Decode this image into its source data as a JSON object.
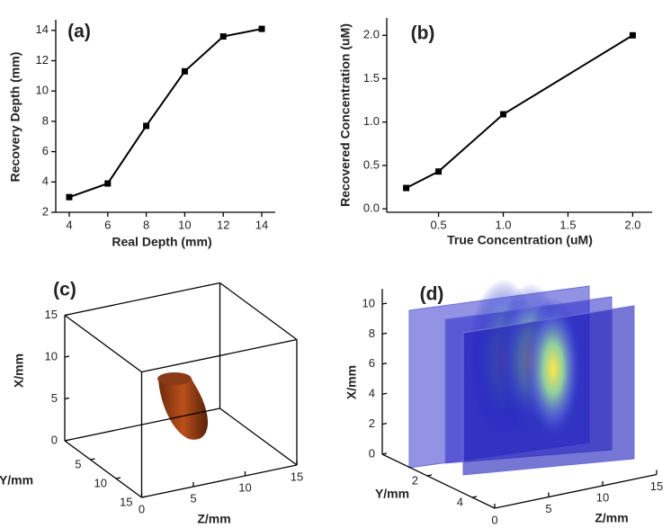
{
  "chart_data": [
    {
      "type": "line",
      "label": "(a)",
      "x_label": "Real Depth (mm)",
      "y_label": "Recovery Depth (mm)",
      "x": [
        4,
        6,
        8,
        10,
        12,
        14
      ],
      "values": [
        3.0,
        3.9,
        7.7,
        11.3,
        13.6,
        14.1
      ],
      "color": "#000000",
      "xlim": [
        3.3,
        14.7
      ],
      "ylim": [
        2,
        14.7
      ],
      "xticks": [
        4,
        6,
        8,
        10,
        12,
        14
      ],
      "yticks": [
        2,
        4,
        6,
        8,
        10,
        12,
        14
      ]
    },
    {
      "type": "line",
      "label": "(b)",
      "x_label": "True Concentration (uM)",
      "y_label": "Recovered Concentration (uM)",
      "x": [
        0.25,
        0.5,
        1,
        2
      ],
      "values": [
        0.24,
        0.43,
        1.09,
        2.0
      ],
      "color": "#000000",
      "xlim": [
        0.1,
        2.15
      ],
      "ylim": [
        -0.04,
        2.2
      ],
      "xticks": [
        {
          "value": 0.5,
          "label": "0.5"
        },
        {
          "value": 1,
          "label": "1.0"
        },
        {
          "value": 1.5,
          "label": "1.5"
        },
        {
          "value": 2,
          "label": "2.0"
        }
      ],
      "yticks": [
        {
          "value": 0,
          "label": "0.0"
        },
        {
          "value": 0.5,
          "label": "0.5"
        },
        {
          "value": 1,
          "label": "1.0"
        },
        {
          "value": 1.5,
          "label": "1.5"
        },
        {
          "value": 2,
          "label": "2.0"
        }
      ]
    },
    {
      "type": "volume3d",
      "label": "(c)",
      "x_label": "Z/mm",
      "y_label": "Y/mm",
      "z_label": "X/mm",
      "xlim": [
        0,
        15
      ],
      "ylim": [
        0,
        15
      ],
      "zlim": [
        0,
        15
      ],
      "xticks": [
        0,
        5,
        10,
        15
      ],
      "yticks": [
        5,
        10,
        15
      ],
      "zticks": [
        0,
        5,
        10,
        15
      ]
    },
    {
      "type": "slices3d",
      "label": "(d)",
      "x_label": "Z/mm",
      "y_label": "Y/mm",
      "z_label": "X/mm",
      "xlim": [
        0,
        15
      ],
      "ylim": [
        0,
        5
      ],
      "zlim": [
        0,
        11
      ],
      "xticks": [
        0,
        5,
        10,
        15
      ],
      "yticks": [
        2,
        4
      ],
      "zticks": [
        0,
        2,
        4,
        6,
        8,
        10
      ]
    }
  ]
}
